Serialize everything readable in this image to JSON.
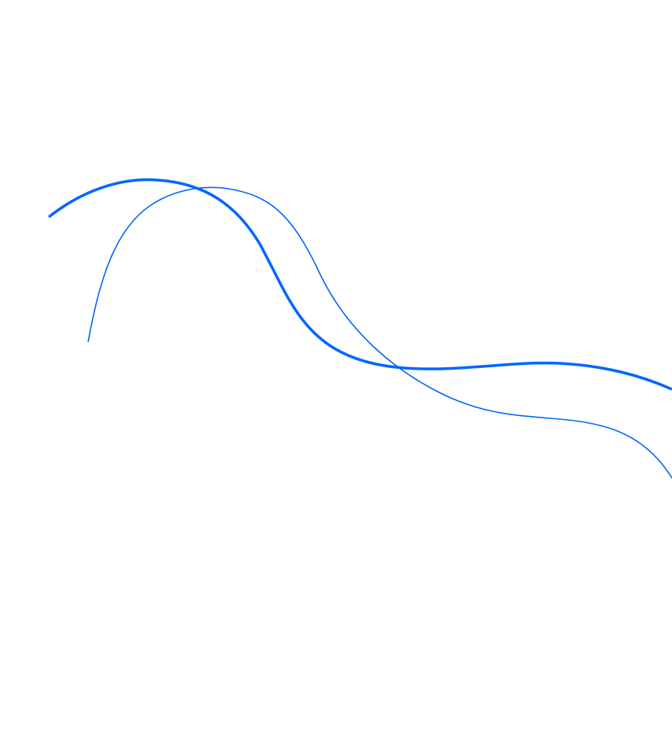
{
  "decoration": {
    "stroke_color": "#0066ff",
    "background_color": "#ffffff",
    "curves": [
      "thick-wave",
      "thin-wave"
    ]
  }
}
